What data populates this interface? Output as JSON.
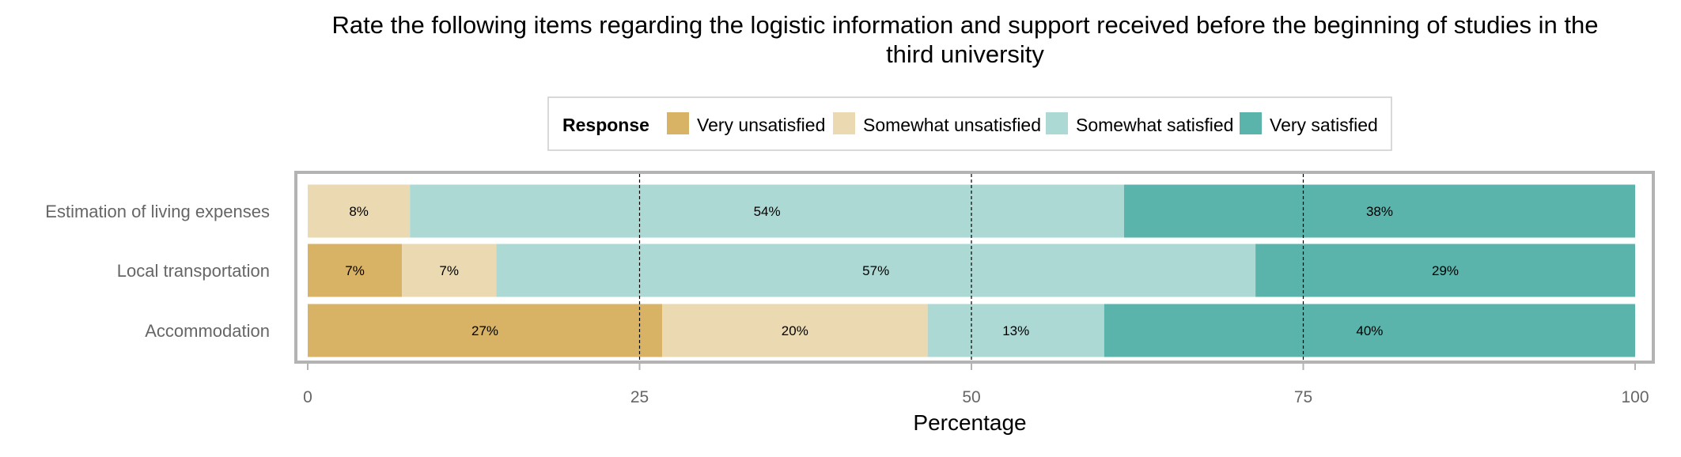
{
  "chart_data": {
    "type": "bar",
    "orientation": "horizontal",
    "stacked": true,
    "title_lines": [
      "Rate the following items regarding the logistic information and support received before the beginning of studies in the",
      "third university"
    ],
    "xlabel": "Percentage",
    "ylabel": "",
    "xlim": [
      0,
      100
    ],
    "xticks": [
      0,
      25,
      50,
      75,
      100
    ],
    "gridlines": [
      25,
      50,
      75
    ],
    "legend": {
      "title": "Response",
      "placement": "top"
    },
    "categories": [
      "Estimation of living expenses",
      "Local transportation",
      "Accommodation"
    ],
    "series": [
      {
        "name": "Very unsatisfied",
        "color": "#D8B365",
        "values": [
          0,
          7.1,
          26.7
        ],
        "labels": [
          "",
          "7%",
          "27%"
        ]
      },
      {
        "name": "Somewhat unsatisfied",
        "color": "#EBD9B2",
        "values": [
          7.7,
          7.1,
          20.0
        ],
        "labels": [
          "8%",
          "7%",
          "20%"
        ]
      },
      {
        "name": "Somewhat satisfied",
        "color": "#ADD9D5",
        "values": [
          53.8,
          57.2,
          13.3
        ],
        "labels": [
          "54%",
          "57%",
          "13%"
        ]
      },
      {
        "name": "Very satisfied",
        "color": "#5AB4AC",
        "values": [
          38.5,
          28.6,
          40.0
        ],
        "labels": [
          "38%",
          "29%",
          "40%"
        ]
      }
    ]
  }
}
